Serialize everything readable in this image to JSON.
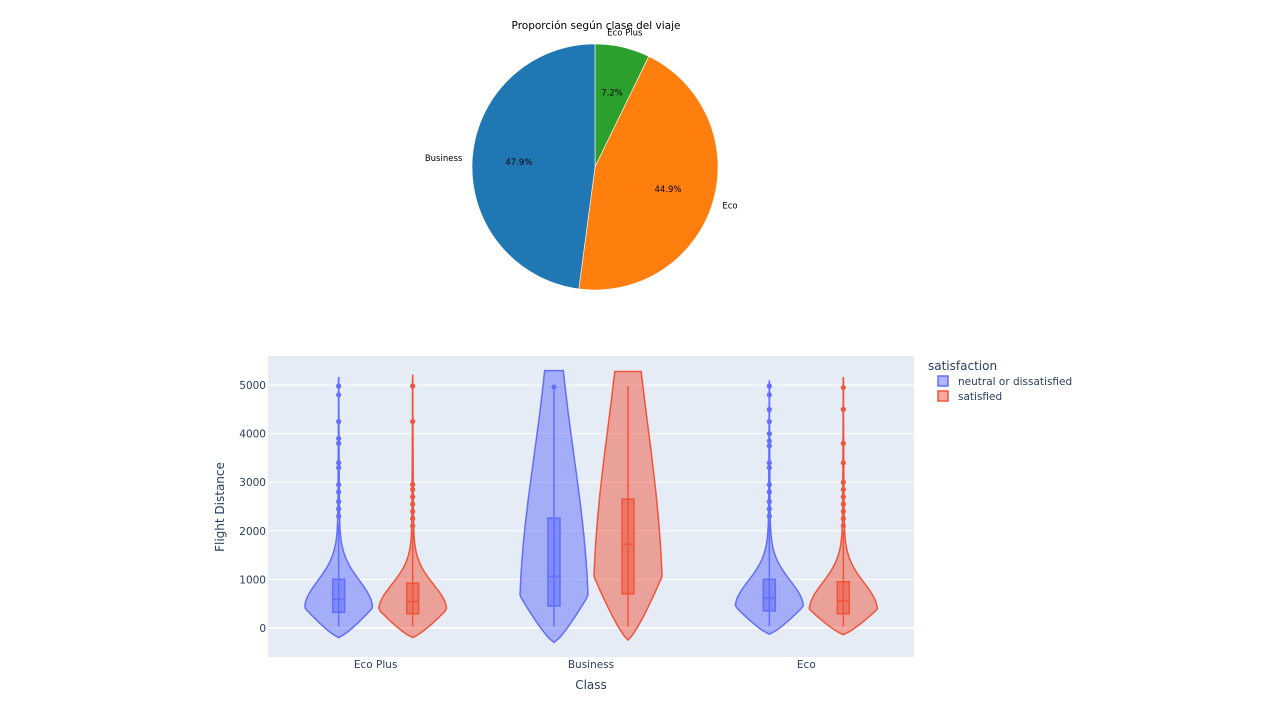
{
  "chart_data": [
    {
      "type": "pie",
      "title": "Proporción según clase del viaje",
      "slices": [
        {
          "label": "Eco Plus",
          "value": 7.2,
          "pct_label": "7.2%",
          "color": "#2ca02c"
        },
        {
          "label": "Eco",
          "value": 44.9,
          "pct_label": "44.9%",
          "color": "#ff7f0e"
        },
        {
          "label": "Business",
          "value": 47.9,
          "pct_label": "47.9%",
          "color": "#1f77b4"
        }
      ],
      "direction": "clockwise",
      "start": "top"
    },
    {
      "type": "violin",
      "xlabel": "Class",
      "ylabel": "Flight Distance",
      "categories": [
        "Eco Plus",
        "Business",
        "Eco"
      ],
      "ylim": [
        -600,
        5600
      ],
      "yticks": [
        0,
        1000,
        2000,
        3000,
        4000,
        5000
      ],
      "yticklabels": [
        "0",
        "1000",
        "2000",
        "3000",
        "4000",
        "5000"
      ],
      "grid": true,
      "legend": {
        "title": "satisfaction",
        "position": "right"
      },
      "series": [
        {
          "name": "neutral or dissatisfied",
          "color": "#636efa",
          "boxes": [
            {
              "category": "Eco Plus",
              "q1": 320,
              "median": 590,
              "q3": 1000,
              "whisker_low": 31,
              "whisker_high": 2150,
              "min": -200,
              "max": 5150
            },
            {
              "category": "Business",
              "q1": 450,
              "median": 1060,
              "q3": 2260,
              "whisker_low": 31,
              "whisker_high": 4950,
              "min": -300,
              "max": 5300
            },
            {
              "category": "Eco",
              "q1": 350,
              "median": 610,
              "q3": 1000,
              "whisker_low": 31,
              "whisker_high": 2200,
              "min": -130,
              "max": 5080
            }
          ],
          "outliers": [
            {
              "category": "Eco Plus",
              "values": [
                2300,
                2450,
                2600,
                2800,
                2950,
                3300,
                3400,
                3800,
                3900,
                4250,
                4800,
                4980
              ]
            },
            {
              "category": "Business",
              "values": [
                4960
              ]
            },
            {
              "category": "Eco",
              "values": [
                2300,
                2450,
                2600,
                2800,
                2950,
                3300,
                3400,
                3750,
                3850,
                4000,
                4250,
                4500,
                4800,
                4980
              ]
            }
          ]
        },
        {
          "name": "satisfied",
          "color": "#ef553b",
          "boxes": [
            {
              "category": "Eco Plus",
              "q1": 290,
              "median": 540,
              "q3": 920,
              "whisker_low": 31,
              "whisker_high": 2000,
              "min": -200,
              "max": 5200
            },
            {
              "category": "Business",
              "q1": 700,
              "median": 1720,
              "q3": 2650,
              "whisker_low": 31,
              "whisker_high": 4980,
              "min": -250,
              "max": 5280
            },
            {
              "category": "Eco",
              "q1": 290,
              "median": 560,
              "q3": 950,
              "whisker_low": 31,
              "whisker_high": 2000,
              "min": -140,
              "max": 5150
            }
          ],
          "outliers": [
            {
              "category": "Eco Plus",
              "values": [
                2100,
                2250,
                2400,
                2550,
                2700,
                2850,
                2950,
                4250,
                4980
              ]
            },
            {
              "category": "Business",
              "values": []
            },
            {
              "category": "Eco",
              "values": [
                2100,
                2250,
                2400,
                2550,
                2700,
                2850,
                3000,
                3400,
                3800,
                4500,
                4950
              ]
            }
          ]
        }
      ]
    }
  ]
}
